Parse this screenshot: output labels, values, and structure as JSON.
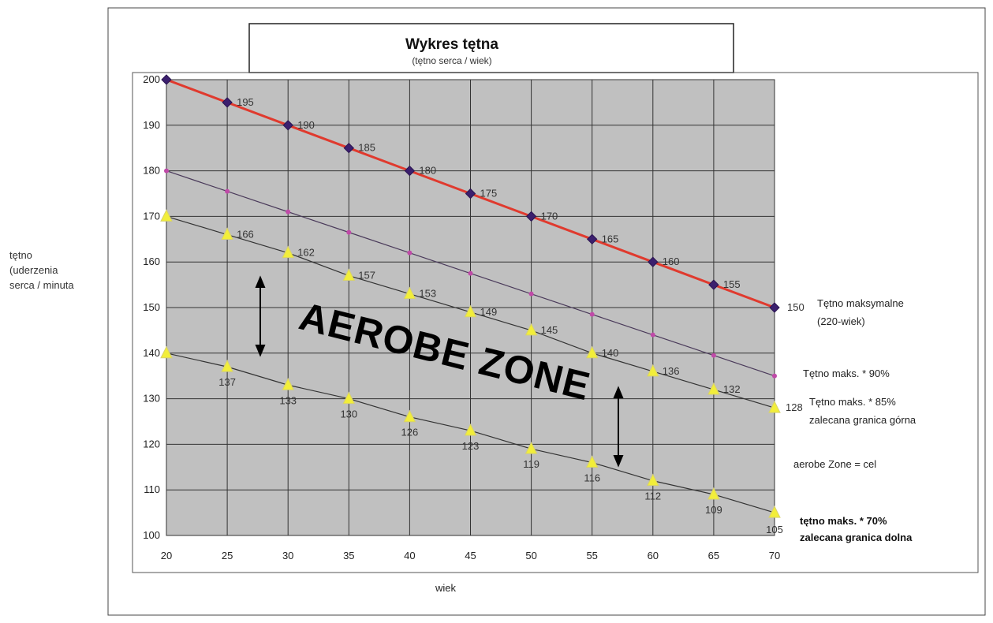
{
  "chart_data": {
    "type": "line",
    "title": "Wykres tętna",
    "subtitle": "(tętno serca / wiek)",
    "xlabel": "wiek",
    "ylabel_lines": [
      "tętno",
      "(uderzenia",
      "serca / minuta"
    ],
    "x": [
      20,
      25,
      30,
      35,
      40,
      45,
      50,
      55,
      60,
      65,
      70
    ],
    "xlim": [
      20,
      70
    ],
    "ylim": [
      100,
      200
    ],
    "yticks": [
      100,
      110,
      120,
      130,
      140,
      150,
      160,
      170,
      180,
      190,
      200
    ],
    "grid": true,
    "series": [
      {
        "key": "max",
        "color": "#e03a2e",
        "marker": "diamond",
        "marker_color": "#3b1f6e",
        "values": [
          200,
          195,
          190,
          185,
          180,
          175,
          170,
          165,
          160,
          155,
          150
        ],
        "labels": [
          "",
          "195",
          "190",
          "185",
          "180",
          "175",
          "170",
          "165",
          "160",
          "155",
          "150"
        ],
        "legend_lines": [
          "Tętno maksymalne",
          "(220-wiek)"
        ]
      },
      {
        "key": "p90",
        "color": "#4a3a5a",
        "marker": "dot",
        "marker_color": "#c04aa8",
        "values": [
          180,
          175.5,
          171,
          166.5,
          162,
          157.5,
          153,
          148.5,
          144,
          139.5,
          135
        ],
        "legend_lines": [
          "Tętno maks. * 90%"
        ]
      },
      {
        "key": "p85",
        "color": "#333333",
        "marker": "triangle",
        "marker_color": "#f2ee3a",
        "values": [
          170,
          166,
          162,
          157,
          153,
          149,
          145,
          140,
          136,
          132,
          128
        ],
        "labels": [
          "",
          "166",
          "162",
          "157",
          "153",
          "149",
          "145",
          "140",
          "136",
          "132",
          "128"
        ],
        "legend_lines": [
          "Tętno maks. * 85%",
          "zalecana granica górna"
        ]
      },
      {
        "key": "p70",
        "color": "#333333",
        "marker": "triangle",
        "marker_color": "#f2ee3a",
        "values": [
          140,
          137,
          133,
          130,
          126,
          123,
          119,
          116,
          112,
          109,
          105
        ],
        "labels": [
          "",
          "137",
          "133",
          "130",
          "126",
          "123",
          "119",
          "116",
          "112",
          "109",
          "105"
        ],
        "legend_lines": [
          "tętno maks. * 70%",
          "zalecana granica dolna"
        ]
      }
    ],
    "annotations": {
      "zone_text": "AEROBE ZONE",
      "zone_note": "aerobe Zone = cel"
    }
  }
}
